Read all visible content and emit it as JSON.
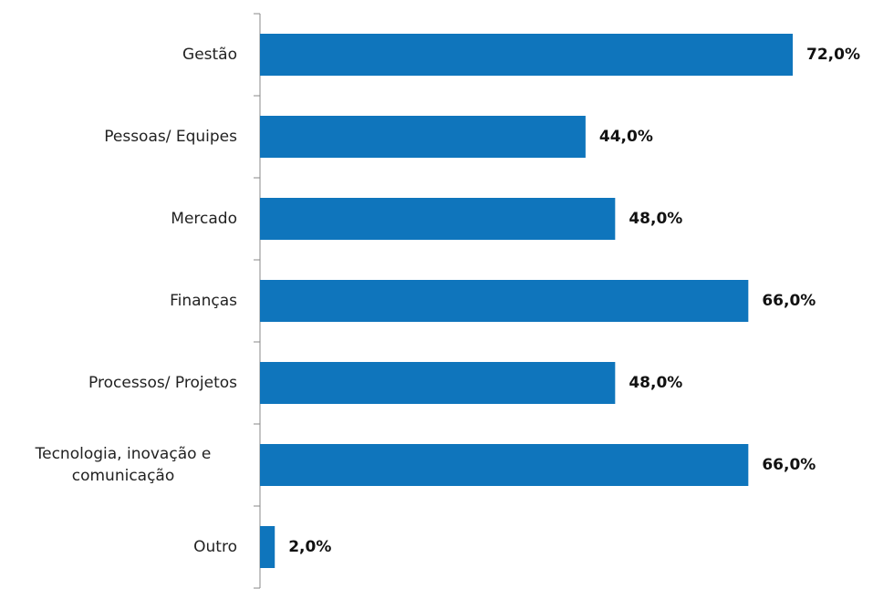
{
  "chart_data": {
    "type": "bar",
    "orientation": "horizontal",
    "categories": [
      "Gestão",
      "Pessoas/ Equipes",
      "Mercado",
      "Finanças",
      "Processos/ Projetos",
      "Tecnologia, inovação e comunicação",
      "Outro"
    ],
    "values": [
      72,
      44,
      48,
      66,
      48,
      66,
      2
    ],
    "value_labels": [
      "72,0%",
      "44,0%",
      "48,0%",
      "66,0%",
      "48,0%",
      "66,0%",
      "2,0%"
    ],
    "color": "#0f75bc"
  }
}
